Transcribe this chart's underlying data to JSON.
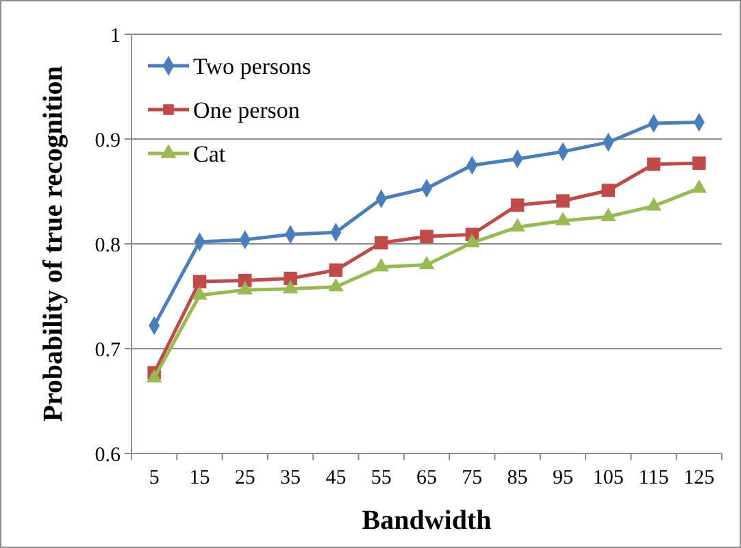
{
  "chart_data": {
    "type": "line",
    "xlabel": "Bandwidth",
    "ylabel": "Probability of true recognition",
    "categories": [
      "5",
      "15",
      "25",
      "35",
      "45",
      "55",
      "65",
      "75",
      "85",
      "95",
      "105",
      "115",
      "125"
    ],
    "ylim": [
      0.6,
      1
    ],
    "yticks": [
      0.6,
      0.7,
      0.8,
      0.9,
      1
    ],
    "grid": "y",
    "legend": "top left",
    "series": [
      {
        "name": "Two persons",
        "color": "#4a7ebb",
        "marker": "diamond",
        "values": [
          0.722,
          0.802,
          0.804,
          0.809,
          0.811,
          0.843,
          0.853,
          0.875,
          0.881,
          0.888,
          0.897,
          0.915,
          0.916
        ]
      },
      {
        "name": "One person",
        "color": "#be4b48",
        "marker": "square",
        "values": [
          0.677,
          0.764,
          0.765,
          0.767,
          0.775,
          0.801,
          0.807,
          0.809,
          0.837,
          0.841,
          0.851,
          0.876,
          0.877
        ]
      },
      {
        "name": "Cat",
        "color": "#98b954",
        "marker": "triangle",
        "values": [
          0.672,
          0.751,
          0.756,
          0.757,
          0.759,
          0.778,
          0.78,
          0.801,
          0.816,
          0.822,
          0.826,
          0.836,
          0.853
        ]
      }
    ]
  }
}
